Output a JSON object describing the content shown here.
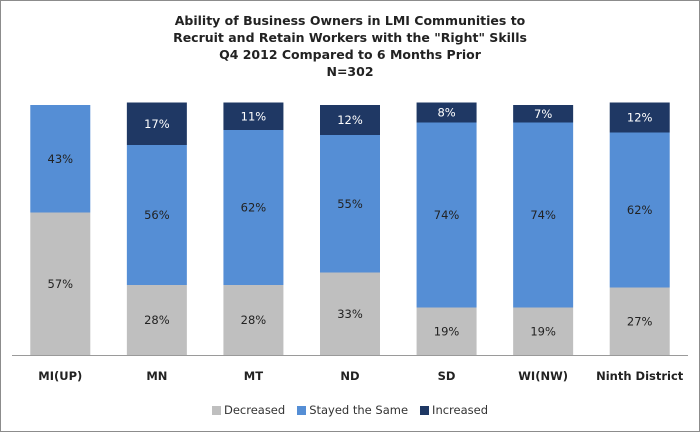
{
  "chart_data": {
    "type": "bar",
    "stacked": true,
    "title_lines": [
      "Ability of Business Owners in LMI Communities to",
      "Recruit and Retain Workers with the \"Right\" Skills",
      "Q4 2012 Compared to 6 Months Prior",
      "N=302"
    ],
    "categories": [
      "MI(UP)",
      "MN",
      "MT",
      "ND",
      "SD",
      "WI(NW)",
      "Ninth District"
    ],
    "series": [
      {
        "name": "Decreased",
        "color": "#bfbfbf",
        "values": [
          57,
          28,
          28,
          33,
          19,
          19,
          27
        ]
      },
      {
        "name": "Stayed the Same",
        "color": "#558ed5",
        "values": [
          43,
          56,
          62,
          55,
          74,
          74,
          62
        ]
      },
      {
        "name": "Increased",
        "color": "#1f3864",
        "values": [
          null,
          17,
          11,
          12,
          8,
          7,
          12
        ]
      }
    ],
    "value_suffix": "%",
    "ylim": [
      0,
      100
    ],
    "legend_position": "bottom",
    "grid": false
  }
}
